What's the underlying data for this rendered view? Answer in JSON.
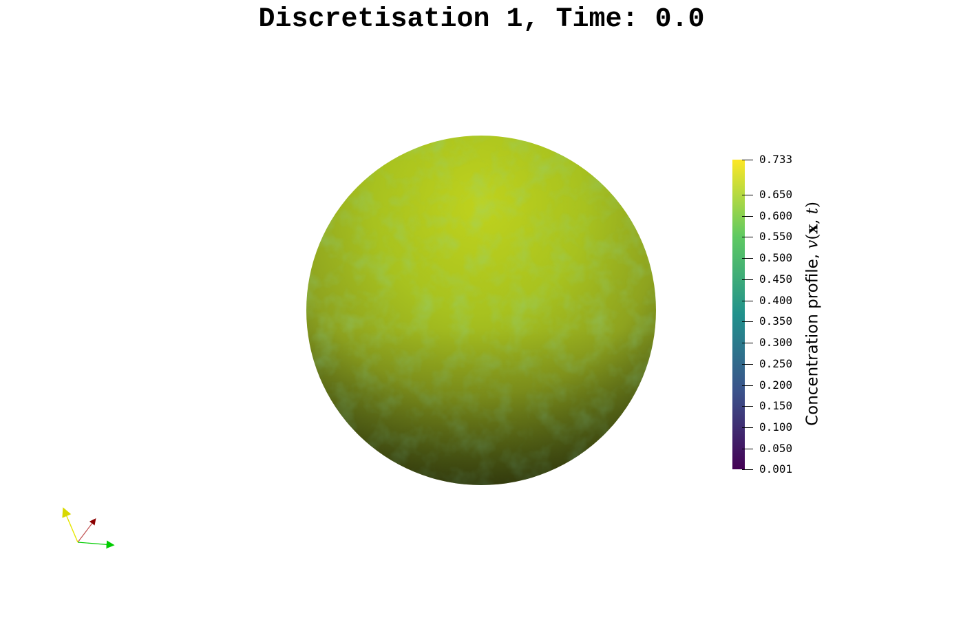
{
  "title": "Discretisation 1, Time: 0.0",
  "colorbar": {
    "label_text": "Concentration profile, ",
    "label_math": "v(x, t)",
    "range": [
      0.001,
      0.733
    ],
    "ticks": [
      "0.733",
      "0.650",
      "0.600",
      "0.550",
      "0.500",
      "0.450",
      "0.400",
      "0.350",
      "0.300",
      "0.250",
      "0.200",
      "0.150",
      "0.100",
      "0.050",
      "0.001"
    ],
    "colormap": "viridis",
    "stops": [
      "#440154",
      "#3b528b",
      "#21918c",
      "#5ec962",
      "#fde725"
    ]
  },
  "sphere": {
    "color_light": "#b9cc1f",
    "color_mid": "#8fa620",
    "color_dark": "#40470f"
  },
  "axes_widget": {
    "x_color": "#8b0000",
    "y_color": "#00cc00",
    "z_color": "#e6e600"
  }
}
